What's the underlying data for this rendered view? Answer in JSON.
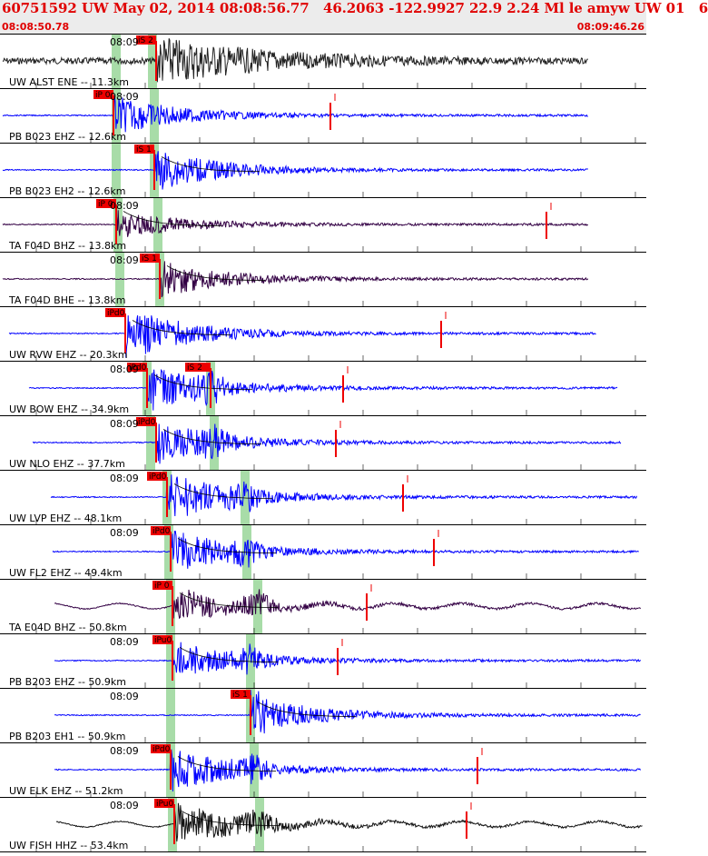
{
  "header": {
    "title": "60751592 UW May 02, 2014 08:08:56.77   46.2063 -122.9927 22.9 2.24 Ml le amyw UW 01   6",
    "start_time": "08:08:50.78",
    "end_time": "08:09:46.26"
  },
  "colors": {
    "header_text": "#e00000",
    "pick_flag": "#ee0000",
    "theoretical_band": "#a8dca8",
    "trace_blue": "#0000ff",
    "trace_dark": "#222222",
    "trace_purple": "#330044"
  },
  "panels": [
    {
      "label": "UW ALST ENE -- 11.3km",
      "time": "08:09",
      "pick": "iS 2",
      "color": "#222222"
    },
    {
      "label": "PB B023 EHZ -- 12.6km",
      "time": "08:09",
      "pick": "iP 0",
      "color": "#0000ff"
    },
    {
      "label": "PB B023 EH2 -- 12.6km",
      "time": "",
      "pick": "iS 1",
      "color": "#0000ff"
    },
    {
      "label": "TA F04D BHZ -- 13.8km",
      "time": "08:09",
      "pick": "iP 0",
      "color": "#330044"
    },
    {
      "label": "TA F04D BHE -- 13.8km",
      "time": "08:09",
      "pick": "iS 1",
      "color": "#330044"
    },
    {
      "label": "UW RVW EHZ -- 20.3km",
      "time": "",
      "pick": "iPd0",
      "color": "#0000ff"
    },
    {
      "label": "UW BOW EHZ -- 34.9km",
      "time": "08:09",
      "pick": "iPd0",
      "color": "#0000ff"
    },
    {
      "label": "UW NLO EHZ -- 37.7km",
      "time": "08:09",
      "pick": "iPd0",
      "color": "#0000ff"
    },
    {
      "label": "UW LVP EHZ -- 48.1km",
      "time": "08:09",
      "pick": "iPd0",
      "color": "#0000ff"
    },
    {
      "label": "UW FL2 EHZ -- 49.4km",
      "time": "08:09",
      "pick": "iPd0",
      "color": "#0000ff"
    },
    {
      "label": "TA E04D BHZ -- 50.8km",
      "time": "",
      "pick": "iP 0",
      "color": "#330044"
    },
    {
      "label": "PB B203 EHZ -- 50.9km",
      "time": "08:09",
      "pick": "iPu0",
      "color": "#0000ff"
    },
    {
      "label": "PB B203 EH1 -- 50.9km",
      "time": "08:09",
      "pick": "iS 1",
      "color": "#0000ff"
    },
    {
      "label": "UW ELK EHZ -- 51.2km",
      "time": "08:09",
      "pick": "iPd0",
      "color": "#0000ff"
    },
    {
      "label": "UW FISH HHZ -- 53.4km",
      "time": "08:09",
      "pick": "iPu0",
      "color": "#111111"
    }
  ],
  "extra_picks": [
    {
      "panel": 6,
      "pick": "iS 2"
    }
  ]
}
